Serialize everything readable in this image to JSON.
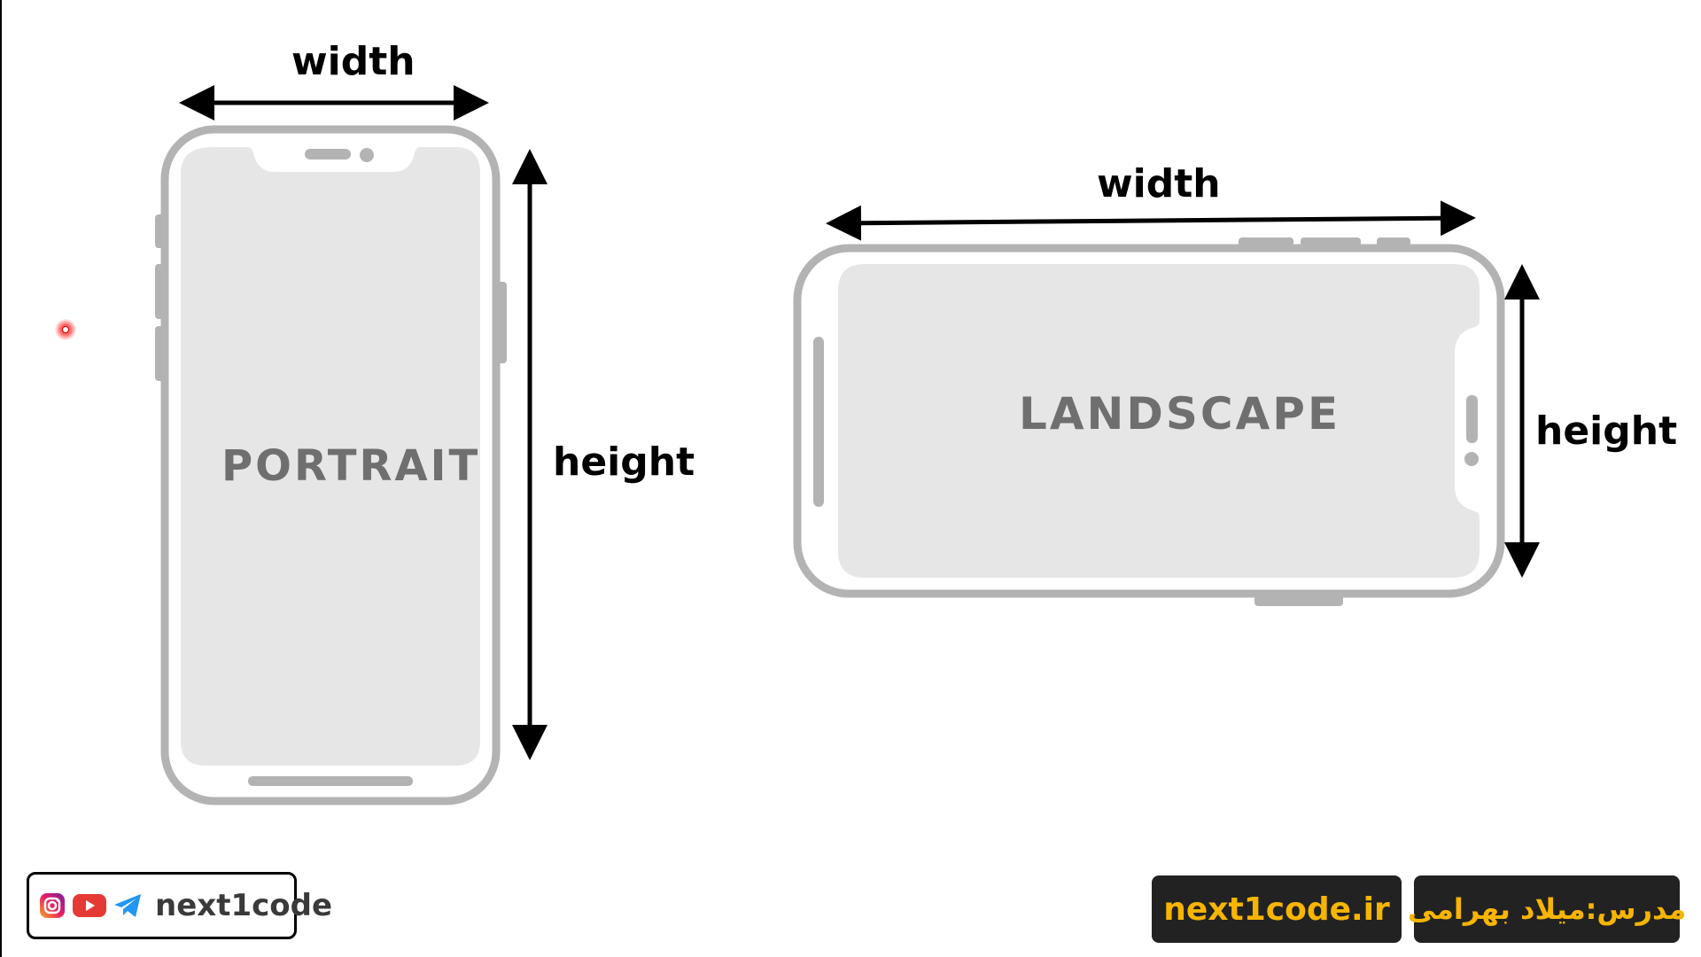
{
  "portrait": {
    "width_label": "width",
    "height_label": "height",
    "screen_text": "PORTRAIT"
  },
  "landscape": {
    "width_label": "width",
    "height_label": "height",
    "screen_text": "LANDSCAPE"
  },
  "footer": {
    "brand": "next1code",
    "social_icons": [
      "instagram-icon",
      "youtube-icon",
      "telegram-icon"
    ],
    "website": "next1code.ir",
    "teacher": "مدرس:میلاد بهرامی"
  },
  "colors": {
    "phone_frame": "#b3b3b3",
    "phone_screen": "#e6e6e6",
    "screen_text": "#6f6f6f",
    "badge_bg": "#222222",
    "badge_text": "#f7b500"
  }
}
